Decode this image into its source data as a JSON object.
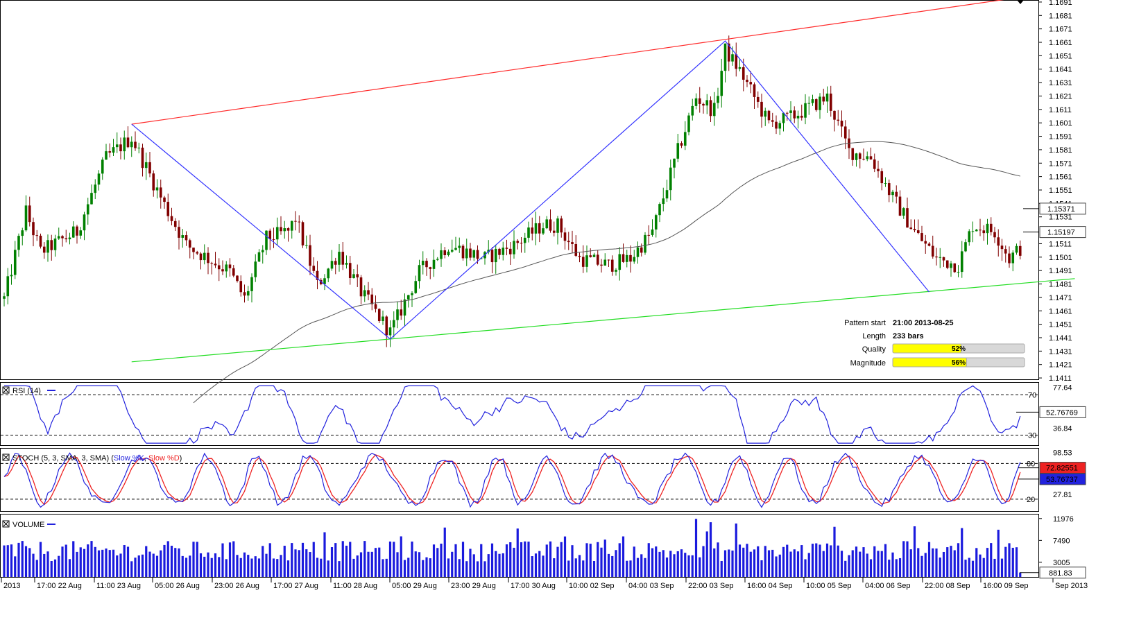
{
  "chart_data": {
    "type": "candlestick",
    "price_axis": {
      "ticks": [
        "1.1691",
        "1.1681",
        "1.1671",
        "1.1661",
        "1.1651",
        "1.1641",
        "1.1631",
        "1.1621",
        "1.1611",
        "1.1601",
        "1.1591",
        "1.1581",
        "1.1571",
        "1.1561",
        "1.1551",
        "1.1541",
        "1.1531",
        "1.1511",
        "1.1501",
        "1.1491",
        "1.1481",
        "1.1471",
        "1.1461",
        "1.1451",
        "1.1441",
        "1.1431",
        "1.1421",
        "1.1411"
      ],
      "range": [
        1.141,
        1.1692
      ],
      "current_price": "1.15197",
      "ma_value": "1.15371"
    },
    "time_labels": [
      "2013",
      "17:00 22 Aug",
      "11:00 23 Aug",
      "05:00 26 Aug",
      "23:00 26 Aug",
      "17:00 27 Aug",
      "11:00 28 Aug",
      "05:00 29 Aug",
      "23:00 29 Aug",
      "17:00 30 Aug",
      "10:00 02 Sep",
      "04:00 03 Sep",
      "22:00 03 Sep",
      "16:00 04 Sep",
      "10:00 05 Sep",
      "04:00 06 Sep",
      "22:00 08 Sep",
      "16:00 09 Sep",
      "Sep 2013"
    ],
    "pattern_points": [
      {
        "bar": 35,
        "price": 1.16
      },
      {
        "bar": 106,
        "price": 1.144
      },
      {
        "bar": 198,
        "price": 1.1662
      },
      {
        "bar": 254,
        "price": 1.1475
      }
    ],
    "upper_line": [
      {
        "bar": 35,
        "price": 1.16
      },
      {
        "bar": 275,
        "price": 1.1693
      }
    ],
    "lower_line": [
      {
        "bar": 35,
        "price": 1.1423
      },
      {
        "bar": 294,
        "price": 1.1485
      }
    ],
    "pattern_info": {
      "start_label": "Pattern start",
      "start_value": "21:00 2013-08-25",
      "length_label": "Length",
      "length_value": "233 bars",
      "quality_label": "Quality",
      "quality_value": 52,
      "quality_text": "52%",
      "magnitude_label": "Magnitude",
      "magnitude_value": 56,
      "magnitude_text": "56%"
    },
    "rsi": {
      "title": "RSI (14)",
      "axis_ticks": [
        "77.64",
        "52.76769",
        "36.84"
      ],
      "level_hi": "70",
      "level_lo": "30",
      "range": [
        20,
        82
      ],
      "current": "52.76769"
    },
    "stoch": {
      "title_prefix": "STOCH (5, 3, SMA, 3, SMA) (",
      "k_name": "Slow %K",
      "sep": ", ",
      "d_name": "Slow %D",
      "title_suffix": ")",
      "axis_ticks": [
        "98.53",
        "27.81"
      ],
      "level_hi": "80",
      "level_lo": "20",
      "range": [
        0,
        105
      ],
      "k_value": "72.82551",
      "d_value": "53.76737"
    },
    "volume": {
      "title": "VOLUME",
      "axis_ticks": [
        "11976",
        "7490",
        "3005"
      ],
      "range": [
        0,
        12800
      ],
      "current": "881.83"
    }
  },
  "colors": {
    "bull": "#008000",
    "bear": "#800000",
    "pattern": "#3333ff",
    "upper": "#ff2a2a",
    "lower": "#22dd22",
    "ma": "#555555",
    "rsi": "#2222dd",
    "stoch_k": "#2222dd",
    "stoch_d": "#ee2222",
    "volume": "#1a1add",
    "bar_fill": "#ffff00"
  }
}
